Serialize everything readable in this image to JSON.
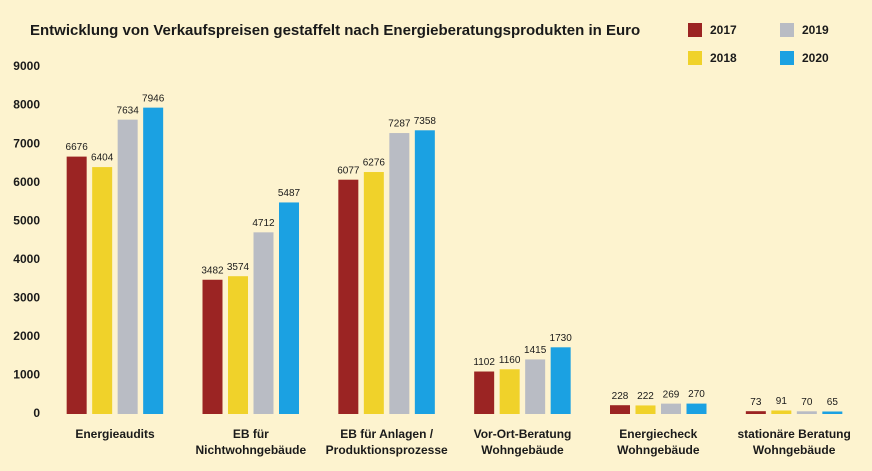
{
  "chart_data": {
    "type": "bar",
    "title": "Entwicklung von Verkaufspreisen gestaffelt nach Energieberatungsprodukten in Euro",
    "categories": [
      "Energieaudits",
      "EB für\nNichtwohngebäude",
      "EB für Anlagen /\nProduktionsprozesse",
      "Vor-Ort-Beratung\nWohngebäude",
      "Energiecheck\nWohngebäude",
      "stationäre Beratung\nWohngebäude"
    ],
    "series": [
      {
        "name": "2017",
        "color": "#9b2423",
        "values": [
          6676,
          3482,
          6077,
          1102,
          228,
          73
        ]
      },
      {
        "name": "2018",
        "color": "#f0d22a",
        "values": [
          6404,
          3574,
          6276,
          1160,
          222,
          91
        ]
      },
      {
        "name": "2019",
        "color": "#b9bcc4",
        "values": [
          7634,
          4712,
          7287,
          1415,
          269,
          70
        ]
      },
      {
        "name": "2020",
        "color": "#1ba1e2",
        "values": [
          7946,
          5487,
          7358,
          1730,
          270,
          65
        ]
      }
    ],
    "ylim": [
      0,
      9000
    ],
    "yticks": [
      0,
      1000,
      2000,
      3000,
      4000,
      5000,
      6000,
      7000,
      8000,
      9000
    ],
    "grid": false,
    "legend": "top-right"
  }
}
